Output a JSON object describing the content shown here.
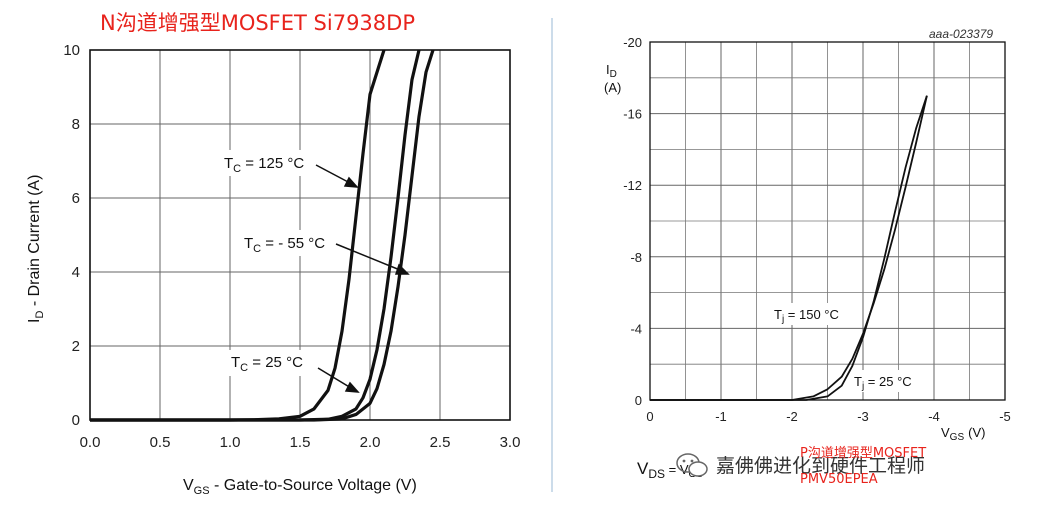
{
  "chart_data": [
    {
      "type": "line",
      "title": "N沟道增强型MOSFET    Si7938DP",
      "xlabel_main": "V",
      "xlabel_sub": "GS",
      "xlabel_rest": " - Gate-to-Source Voltage (V)",
      "ylabel_main": "I",
      "ylabel_sub": "D",
      "ylabel_rest": " - Drain Current (A)",
      "xlim": [
        0.0,
        3.0
      ],
      "ylim": [
        0,
        10
      ],
      "x_ticks": [
        "0.0",
        "0.5",
        "1.0",
        "1.5",
        "2.0",
        "2.5",
        "3.0"
      ],
      "y_ticks": [
        "0",
        "2",
        "4",
        "6",
        "8",
        "10"
      ],
      "grid": true,
      "series": [
        {
          "name": "T_C = 125 °C",
          "x": [
            1.0,
            1.2,
            1.35,
            1.5,
            1.6,
            1.7,
            1.75,
            1.8,
            1.85,
            1.9,
            1.95,
            2.0,
            2.1
          ],
          "y": [
            0.0,
            0.01,
            0.03,
            0.1,
            0.3,
            0.8,
            1.4,
            2.4,
            3.8,
            5.5,
            7.2,
            8.8,
            10
          ]
        },
        {
          "name": "T_C = - 55 °C",
          "x": [
            1.5,
            1.7,
            1.8,
            1.9,
            1.95,
            2.0,
            2.05,
            2.1,
            2.15,
            2.2,
            2.25,
            2.3,
            2.35
          ],
          "y": [
            0.0,
            0.02,
            0.1,
            0.3,
            0.6,
            1.1,
            1.9,
            3.0,
            4.4,
            6.0,
            7.7,
            9.2,
            10
          ]
        },
        {
          "name": "T_C = 25 °C",
          "x": [
            1.6,
            1.8,
            1.9,
            2.0,
            2.05,
            2.1,
            2.15,
            2.2,
            2.25,
            2.3,
            2.35,
            2.4,
            2.45
          ],
          "y": [
            0.0,
            0.03,
            0.15,
            0.45,
            0.85,
            1.5,
            2.4,
            3.6,
            5.0,
            6.6,
            8.2,
            9.4,
            10
          ]
        }
      ],
      "annotations": [
        {
          "main": "T",
          "sub": "C",
          "rest": " = 125 °C"
        },
        {
          "main": "T",
          "sub": "C",
          "rest": " = - 55 °C"
        },
        {
          "main": "T",
          "sub": "C",
          "rest": " = 25 °C"
        }
      ]
    },
    {
      "type": "line",
      "code": "aaa-023379",
      "ylabel_main": "I",
      "ylabel_sub": "D",
      "ylabel_unit": "(A)",
      "xlabel_main": "V",
      "xlabel_sub": "GS",
      "xlabel_unit": "(V)",
      "xlim": [
        0,
        -5
      ],
      "ylim": [
        0,
        -20
      ],
      "x_ticks": [
        "0",
        "-1",
        "-2",
        "-3",
        "-4",
        "-5"
      ],
      "y_ticks": [
        "0",
        "-4",
        "-8",
        "-12",
        "-16",
        "-20"
      ],
      "grid": true,
      "series": [
        {
          "name": "T_j = 150 °C",
          "x": [
            -2.0,
            -2.3,
            -2.5,
            -2.7,
            -2.85,
            -3.0,
            -3.15,
            -3.3,
            -3.45,
            -3.6,
            -3.75,
            -3.9
          ],
          "y": [
            0.0,
            -0.2,
            -0.6,
            -1.3,
            -2.3,
            -3.7,
            -5.4,
            -7.3,
            -9.5,
            -11.9,
            -14.4,
            -17.0
          ]
        },
        {
          "name": "T_j = 25 °C",
          "x": [
            -2.2,
            -2.5,
            -2.7,
            -2.85,
            -3.0,
            -3.15,
            -3.3,
            -3.45,
            -3.6,
            -3.75,
            -3.9
          ],
          "y": [
            0.0,
            -0.2,
            -0.8,
            -1.9,
            -3.5,
            -5.5,
            -7.9,
            -10.5,
            -13.0,
            -15.2,
            -17.0
          ]
        }
      ],
      "annotations": [
        {
          "main": "T",
          "sub": "j",
          "rest": " = 150 °C"
        },
        {
          "main": "T",
          "sub": "j",
          "rest": " = 25 °C"
        }
      ]
    }
  ],
  "watermark": {
    "vds_main": "V",
    "vds_sub": "DS",
    "vds_rest": " = V",
    "vds_sub2": "GS",
    "author": "嘉佛佛进化到硬件工程师",
    "overlay_line1": "P沟道增强型MOSFET",
    "overlay_line2": "PMV50EPEA"
  }
}
